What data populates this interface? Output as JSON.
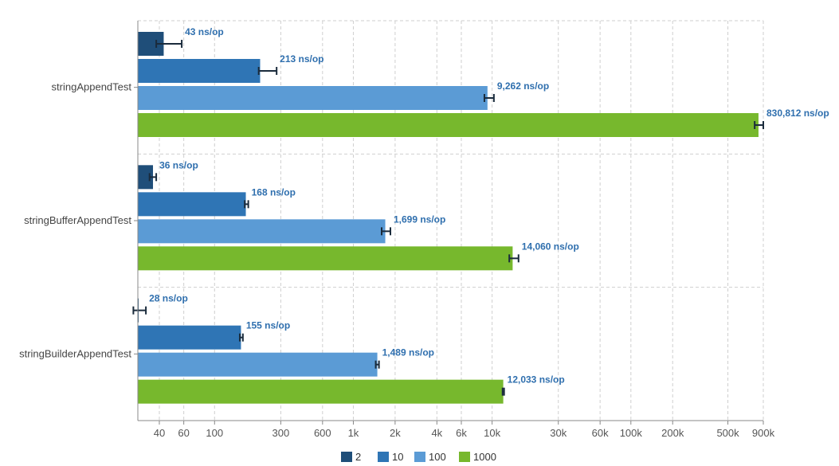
{
  "chart_data": {
    "type": "bar",
    "orientation": "horizontal",
    "x_scale": "log",
    "xlim": [
      28,
      900000
    ],
    "grid": true,
    "legend_placement": "bottom-center",
    "categories": [
      "stringAppendTest",
      "stringBufferAppendTest",
      "stringBuilderAppendTest"
    ],
    "x_ticks": [
      40,
      60,
      100,
      300,
      600,
      1000,
      2000,
      4000,
      6000,
      10000,
      30000,
      60000,
      100000,
      200000,
      500000,
      900000
    ],
    "x_tick_labels": [
      "40",
      "60",
      "100",
      "300",
      "600",
      "1k",
      "2k",
      "4k",
      "6k",
      "10k",
      "30k",
      "60k",
      "100k",
      "200k",
      "500k",
      "900k"
    ],
    "unit": "ns/op",
    "series": [
      {
        "name": "2",
        "color": "#1f4e79",
        "values": [
          43,
          36,
          28
        ],
        "error_low": [
          38,
          34,
          26
        ],
        "error_high": [
          58,
          38,
          32
        ],
        "labels": [
          "43 ns/op",
          "36 ns/op",
          "28 ns/op"
        ]
      },
      {
        "name": "10",
        "color": "#2f75b5",
        "values": [
          213,
          168,
          155
        ],
        "error_low": [
          208,
          165,
          152
        ],
        "error_high": [
          280,
          175,
          160
        ],
        "labels": [
          "213 ns/op",
          "168 ns/op",
          "155 ns/op"
        ]
      },
      {
        "name": "100",
        "color": "#5b9bd5",
        "values": [
          9262,
          1699,
          1489
        ],
        "error_low": [
          8800,
          1600,
          1450
        ],
        "error_high": [
          10300,
          1850,
          1530
        ],
        "labels": [
          "9,262 ns/op",
          "1,699 ns/op",
          "1,489 ns/op"
        ]
      },
      {
        "name": "1000",
        "color": "#77b82d",
        "values": [
          830812,
          14060,
          12033
        ],
        "error_low": [
          780000,
          13300,
          11900
        ],
        "error_high": [
          900000,
          15500,
          12200
        ],
        "labels": [
          "830,812 ns/op",
          "14,060 ns/op",
          "12,033 ns/op"
        ]
      }
    ]
  }
}
